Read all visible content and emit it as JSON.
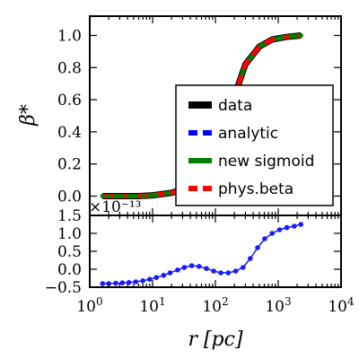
{
  "chart_data": [
    {
      "type": "line",
      "panel": "top",
      "ylabel": "β*",
      "xscale": "log",
      "xlim": [
        1,
        10000
      ],
      "ylim": [
        -0.12,
        1.12
      ],
      "yticks": [
        0.0,
        0.2,
        0.4,
        0.6,
        0.8,
        1.0
      ],
      "ytick_labels": [
        "0.0",
        "0.2",
        "0.4",
        "0.6",
        "0.8",
        "1.0"
      ],
      "legend_position": "lower-right",
      "series": [
        {
          "name": "data",
          "color": "#000000",
          "style": "solid",
          "x": [
            1.6,
            3,
            6,
            10,
            20,
            40,
            80,
            140,
            200,
            300,
            500,
            800,
            1300,
            2300
          ],
          "y": [
            0.0,
            0.0,
            0.0,
            0.005,
            0.02,
            0.06,
            0.15,
            0.35,
            0.62,
            0.82,
            0.93,
            0.975,
            0.99,
            1.0
          ]
        },
        {
          "name": "analytic",
          "color": "#0000ff",
          "style": "dashed",
          "x": [
            1.6,
            3,
            6,
            10,
            20,
            40,
            80,
            140,
            200,
            300,
            500,
            800,
            1300,
            2300
          ],
          "y": [
            0.0,
            0.0,
            0.0,
            0.005,
            0.02,
            0.06,
            0.15,
            0.35,
            0.62,
            0.82,
            0.93,
            0.975,
            0.99,
            1.0
          ]
        },
        {
          "name": "new sigmoid",
          "color": "#008000",
          "style": "solid",
          "x": [
            1.6,
            3,
            6,
            10,
            20,
            40,
            80,
            140,
            200,
            300,
            500,
            800,
            1300,
            2300
          ],
          "y": [
            0.0,
            0.0,
            0.0,
            0.005,
            0.02,
            0.06,
            0.15,
            0.35,
            0.62,
            0.82,
            0.93,
            0.975,
            0.99,
            1.0
          ]
        },
        {
          "name": "phys.beta",
          "color": "#ff0000",
          "style": "dashed",
          "x": [
            1.6,
            3,
            6,
            10,
            20,
            40,
            80,
            140,
            200,
            300,
            500,
            800,
            1300,
            2300
          ],
          "y": [
            0.0,
            0.0,
            0.0,
            0.005,
            0.02,
            0.06,
            0.15,
            0.35,
            0.62,
            0.82,
            0.93,
            0.975,
            0.99,
            1.0
          ]
        }
      ],
      "markers": {
        "color": "#008000",
        "x": [
          1.6,
          2.0,
          2.6,
          3.3,
          4.2,
          5.4,
          7.0,
          9.0,
          11.5,
          1150,
          1600,
          2300
        ],
        "y": [
          0.0,
          0.0,
          0.0,
          0.0,
          0.0,
          0.0,
          0.002,
          0.004,
          0.006,
          0.99,
          0.995,
          1.0
        ]
      }
    },
    {
      "type": "line",
      "panel": "bottom",
      "xlabel": "r [pc]",
      "xscale": "log",
      "xlim": [
        1,
        10000
      ],
      "xtick_exponents": [
        0,
        1,
        2,
        3,
        4
      ],
      "ylim": [
        -0.5,
        1.5
      ],
      "yticks": [
        -0.5,
        0.0,
        0.5,
        1.0,
        1.5
      ],
      "ytick_labels": [
        "−0.5",
        "0.0",
        "0.5",
        "1.0",
        "1.5"
      ],
      "offset_text": "×10⁻¹³",
      "series": [
        {
          "name": "",
          "color": "#1a1aff",
          "marker": "circle",
          "x": [
            1.6,
            2.0,
            2.6,
            3.3,
            4.2,
            5.4,
            7.0,
            9.0,
            11.5,
            15,
            19,
            25,
            32,
            42,
            55,
            72,
            94,
            122,
            160,
            210,
            275,
            360,
            470,
            610,
            800,
            1050,
            1370,
            1800,
            2300
          ],
          "y": [
            -0.4,
            -0.4,
            -0.39,
            -0.38,
            -0.37,
            -0.35,
            -0.32,
            -0.28,
            -0.23,
            -0.17,
            -0.1,
            -0.02,
            0.05,
            0.1,
            0.08,
            0.02,
            -0.05,
            -0.1,
            -0.1,
            -0.05,
            0.05,
            0.3,
            0.6,
            0.85,
            1.0,
            1.1,
            1.16,
            1.2,
            1.25
          ]
        }
      ]
    }
  ]
}
